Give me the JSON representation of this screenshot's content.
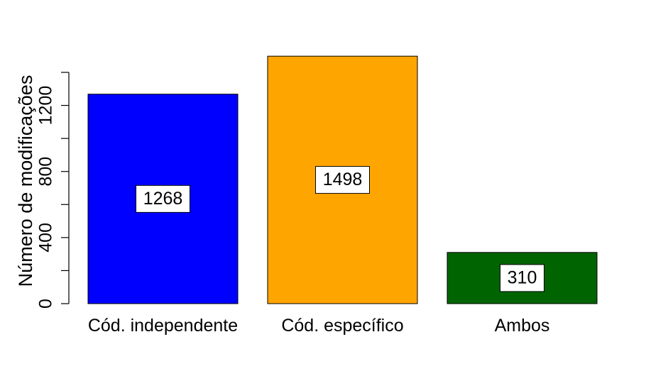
{
  "chart_data": {
    "type": "bar",
    "title": "",
    "xlabel": "",
    "ylabel": "Número de modificações",
    "categories": [
      "Cód. independente",
      "Cód. específico",
      "Ambos"
    ],
    "values": [
      1268,
      1498,
      310
    ],
    "data_labels": [
      "1268",
      "1498",
      "310"
    ],
    "colors": [
      "#0000ff",
      "#ffa500",
      "#006400"
    ],
    "ylim": [
      0,
      1400
    ],
    "y_ticks": [
      0,
      200,
      400,
      600,
      800,
      1000,
      1200,
      1400
    ],
    "y_tick_labels": [
      "0",
      "",
      "400",
      "",
      "800",
      "",
      "1200",
      ""
    ],
    "grid": false,
    "legend": "none"
  }
}
